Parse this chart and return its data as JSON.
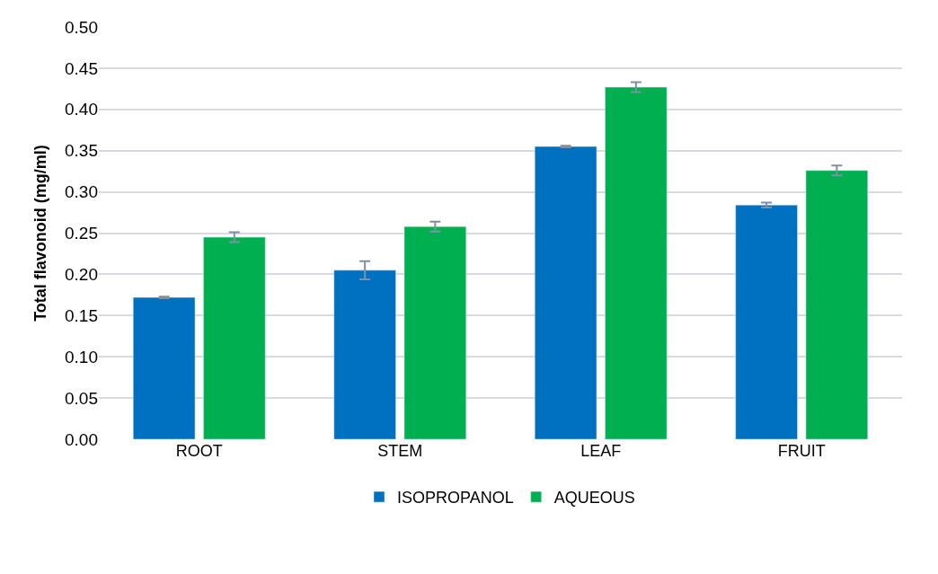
{
  "chart_data": {
    "type": "bar",
    "ylabel": "Total flavonoid (mg/ml)",
    "categories": [
      "ROOT",
      "STEM",
      "LEAF",
      "FRUIT"
    ],
    "series": [
      {
        "name": "ISOPROPANOL",
        "color": "#0070c0",
        "values": [
          0.172,
          0.205,
          0.355,
          0.284
        ],
        "errors": [
          0.001,
          0.011,
          0.001,
          0.003
        ]
      },
      {
        "name": "AQUEOUS",
        "color": "#00b050",
        "values": [
          0.245,
          0.258,
          0.427,
          0.326
        ],
        "errors": [
          0.006,
          0.006,
          0.006,
          0.006
        ]
      }
    ],
    "ylim": [
      0,
      0.5
    ],
    "yticks": [
      {
        "value": 0,
        "label": "0.00"
      },
      {
        "value": 0.05,
        "label": "0.05"
      },
      {
        "value": 0.1,
        "label": "0.10"
      },
      {
        "value": 0.15,
        "label": "0.15"
      },
      {
        "value": 0.2,
        "label": "0.20"
      },
      {
        "value": 0.25,
        "label": "0.25"
      },
      {
        "value": 0.3,
        "label": "0.30"
      },
      {
        "value": 0.35,
        "label": "0.35"
      },
      {
        "value": 0.4,
        "label": "0.40"
      },
      {
        "value": 0.45,
        "label": "0.45"
      },
      {
        "value": 0.5,
        "label": "0.50"
      }
    ],
    "grid": "y",
    "legend": "bottom"
  }
}
